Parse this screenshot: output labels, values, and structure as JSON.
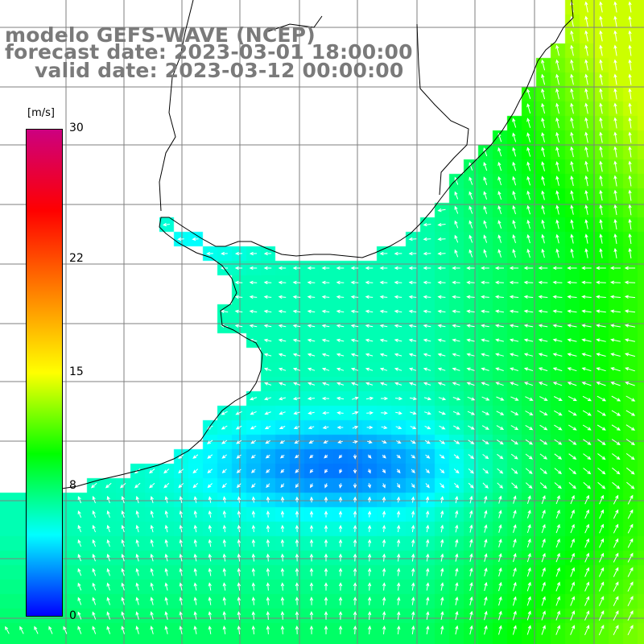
{
  "title": {
    "model": "modelo GEFS-WAVE (NCEP)",
    "forecast": "forecast date: 2023-03-01 18:00:00",
    "valid": "valid date: 2023-03-12 00:00:00"
  },
  "colorbar": {
    "unit": "[m/s]",
    "ticks": [
      {
        "value": 30,
        "label": "30"
      },
      {
        "value": 22,
        "label": "22"
      },
      {
        "value": 15,
        "label": "15"
      },
      {
        "value": 8,
        "label": "8"
      },
      {
        "value": 0,
        "label": "0"
      }
    ],
    "stops": [
      "#0000ff",
      "#00ffff",
      "#00ff00",
      "#ffff00",
      "#ff8000",
      "#ff0000",
      "#cc0080"
    ],
    "range": [
      0,
      30
    ]
  },
  "map": {
    "land_color": "#ffffff",
    "coast_color": "#000000",
    "grid_color": "#7f7f7f",
    "arrow_color": "#ffffff",
    "grid_on": true
  }
}
